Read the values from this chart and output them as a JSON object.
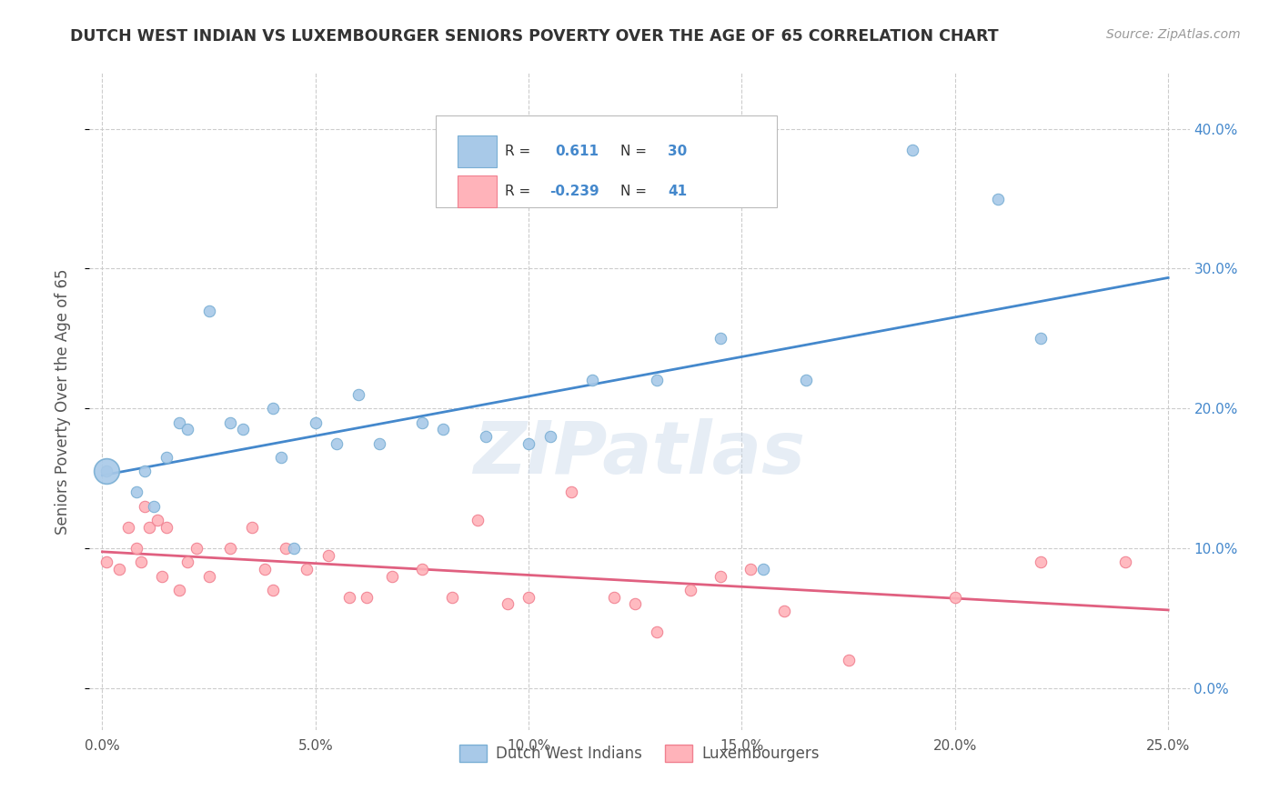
{
  "title": "DUTCH WEST INDIAN VS LUXEMBOURGER SENIORS POVERTY OVER THE AGE OF 65 CORRELATION CHART",
  "source": "Source: ZipAtlas.com",
  "ylabel": "Seniors Poverty Over the Age of 65",
  "xlabel_ticks": [
    "0.0%",
    "5.0%",
    "10.0%",
    "15.0%",
    "20.0%",
    "25.0%"
  ],
  "xlabel_vals": [
    0.0,
    0.05,
    0.1,
    0.15,
    0.2,
    0.25
  ],
  "ylabel_ticks": [
    "0.0%",
    "10.0%",
    "20.0%",
    "30.0%",
    "40.0%"
  ],
  "ylabel_vals": [
    0.0,
    0.1,
    0.2,
    0.3,
    0.4
  ],
  "xlim": [
    -0.003,
    0.255
  ],
  "ylim": [
    -0.03,
    0.44
  ],
  "blue_scatter_color": "#a8c9e8",
  "blue_edge_color": "#7aafd4",
  "pink_scatter_color": "#ffb3ba",
  "pink_edge_color": "#f08090",
  "line_blue": "#4488cc",
  "line_pink": "#e06080",
  "R_blue": 0.611,
  "N_blue": 30,
  "R_pink": -0.239,
  "N_pink": 41,
  "blue_x": [
    0.001,
    0.008,
    0.01,
    0.012,
    0.015,
    0.018,
    0.02,
    0.025,
    0.03,
    0.033,
    0.04,
    0.042,
    0.045,
    0.05,
    0.055,
    0.06,
    0.065,
    0.075,
    0.08,
    0.09,
    0.1,
    0.105,
    0.115,
    0.13,
    0.145,
    0.155,
    0.165,
    0.19,
    0.21,
    0.22
  ],
  "blue_y": [
    0.155,
    0.14,
    0.155,
    0.13,
    0.165,
    0.19,
    0.185,
    0.27,
    0.19,
    0.185,
    0.2,
    0.165,
    0.1,
    0.19,
    0.175,
    0.21,
    0.175,
    0.19,
    0.185,
    0.18,
    0.175,
    0.18,
    0.22,
    0.22,
    0.25,
    0.085,
    0.22,
    0.385,
    0.35,
    0.25
  ],
  "pink_x": [
    0.001,
    0.004,
    0.006,
    0.008,
    0.009,
    0.01,
    0.011,
    0.013,
    0.014,
    0.015,
    0.018,
    0.02,
    0.022,
    0.025,
    0.03,
    0.035,
    0.038,
    0.04,
    0.043,
    0.048,
    0.053,
    0.058,
    0.062,
    0.068,
    0.075,
    0.082,
    0.088,
    0.095,
    0.1,
    0.11,
    0.12,
    0.125,
    0.13,
    0.138,
    0.145,
    0.152,
    0.16,
    0.175,
    0.2,
    0.22,
    0.24
  ],
  "pink_y": [
    0.09,
    0.085,
    0.115,
    0.1,
    0.09,
    0.13,
    0.115,
    0.12,
    0.08,
    0.115,
    0.07,
    0.09,
    0.1,
    0.08,
    0.1,
    0.115,
    0.085,
    0.07,
    0.1,
    0.085,
    0.095,
    0.065,
    0.065,
    0.08,
    0.085,
    0.065,
    0.12,
    0.06,
    0.065,
    0.14,
    0.065,
    0.06,
    0.04,
    0.07,
    0.08,
    0.085,
    0.055,
    0.02,
    0.065,
    0.09,
    0.09
  ],
  "watermark": "ZIPatlas",
  "legend_label_blue": "Dutch West Indians",
  "legend_label_pink": "Luxembourgers",
  "background_color": "#ffffff",
  "grid_color": "#cccccc",
  "title_color": "#333333",
  "source_color": "#999999",
  "axis_label_color": "#555555",
  "right_tick_color": "#4488cc",
  "marker_size": 80
}
